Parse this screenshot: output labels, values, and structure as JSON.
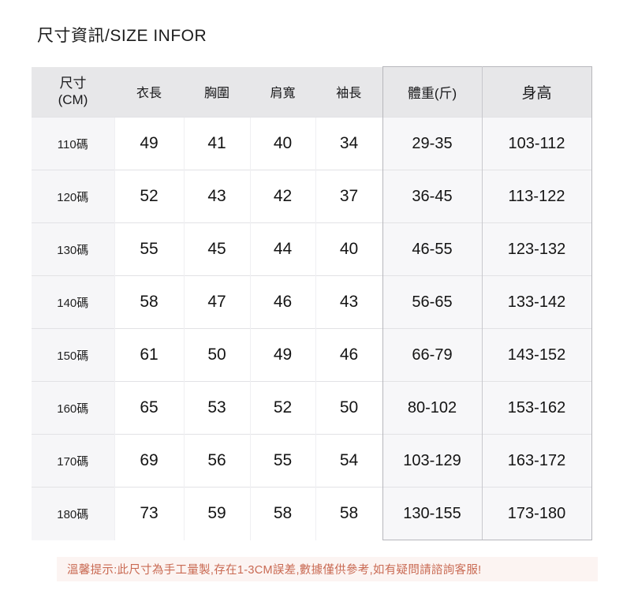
{
  "page": {
    "title": "尺寸資訊/SIZE INFOR"
  },
  "table": {
    "header": {
      "size_line1": "尺寸",
      "size_line2": "(CM)",
      "columns": [
        "衣長",
        "胸圍",
        "肩寬",
        "袖長",
        "體重(斤)",
        "身高"
      ]
    },
    "rows": [
      {
        "size": "110碼",
        "values": [
          "49",
          "41",
          "40",
          "34",
          "29-35",
          "103-112"
        ]
      },
      {
        "size": "120碼",
        "values": [
          "52",
          "43",
          "42",
          "37",
          "36-45",
          "113-122"
        ]
      },
      {
        "size": "130碼",
        "values": [
          "55",
          "45",
          "44",
          "40",
          "46-55",
          "123-132"
        ]
      },
      {
        "size": "140碼",
        "values": [
          "58",
          "47",
          "46",
          "43",
          "56-65",
          "133-142"
        ]
      },
      {
        "size": "150碼",
        "values": [
          "61",
          "50",
          "49",
          "46",
          "66-79",
          "143-152"
        ]
      },
      {
        "size": "160碼",
        "values": [
          "65",
          "53",
          "52",
          "50",
          "80-102",
          "153-162"
        ]
      },
      {
        "size": "170碼",
        "values": [
          "69",
          "56",
          "55",
          "54",
          "103-129",
          "163-172"
        ]
      },
      {
        "size": "180碼",
        "values": [
          "73",
          "59",
          "58",
          "58",
          "130-155",
          "173-180"
        ]
      }
    ]
  },
  "notice": {
    "text": "溫馨提示:此尺寸為手工量製,存在1-3CM誤差,數據僅供參考,如有疑問請諮詢客服!"
  },
  "colors": {
    "header_bg": "#e7e7e9",
    "row_alt_bg": "#f6f6f8",
    "block_bg": "#f7f7f9",
    "block_border": "#b7b7bc",
    "grid_line": "#e2e2e5",
    "notice_bg": "#fcf4f2",
    "notice_text": "#c96a53",
    "text": "#141414"
  }
}
